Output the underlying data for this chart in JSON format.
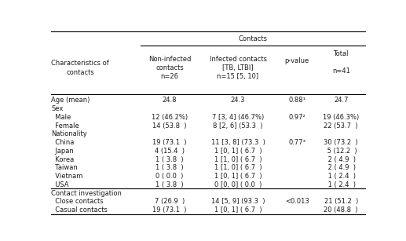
{
  "col_headers_row0": "Contacts",
  "col_headers": [
    "Characteristics of\ncontacts",
    "Non-infected\ncontacts\nn=26",
    "Infected contacts\n[TB, LTBI]\nn=15 [5, 10]",
    "p-value",
    "Total\n\nn=41"
  ],
  "rows": [
    [
      "Age (mean)",
      "24.8",
      "24.3",
      "0.88¹",
      "24.7"
    ],
    [
      "Sex",
      "",
      "",
      "",
      ""
    ],
    [
      "  Male",
      "12 (46.2%)",
      "7 [3, 4] (46.7%)",
      "0.97²",
      "19 (46.3%)"
    ],
    [
      "  Female",
      "14 (53.8  )",
      "8 [2, 6] (53.3  )",
      "",
      "22 (53.7  )"
    ],
    [
      "Nationality",
      "",
      "",
      "",
      ""
    ],
    [
      "  China",
      "19 (73.1  )",
      "11 [3, 8] (73.3  )",
      "0.77³",
      "30 (73.2  )"
    ],
    [
      "  Japan",
      "4 (15.4  )",
      "1 [0, 1] ( 6.7  )",
      "",
      " 5 (12.2  )"
    ],
    [
      "  Korea",
      "1 ( 3.8  )",
      "1 [1, 0] ( 6.7  )",
      "",
      " 2 ( 4.9  )"
    ],
    [
      "  Taiwan",
      "1 ( 3.8  )",
      "1 [1, 0] ( 6.7  )",
      "",
      " 2 ( 4.9  )"
    ],
    [
      "  Vietnam",
      "0 ( 0.0  )",
      "1 [0, 1] ( 6.7  )",
      "",
      " 1 ( 2.4  )"
    ],
    [
      "  USA",
      "1 ( 3.8  )",
      "0 [0, 0] ( 0.0  )",
      "",
      " 1 ( 2.4  )"
    ],
    [
      "Contact investigation",
      "",
      "",
      "",
      ""
    ],
    [
      "  Close contacts",
      "7 (26.9  )",
      "14 [5, 9] (93.3  )",
      "<0.013",
      "21 (51.2  )"
    ],
    [
      "  Casual contacts",
      "19 (73.1  )",
      "1 [0, 1] ( 6.7  )",
      "",
      "20 (48.8  )"
    ]
  ],
  "section_rows": [
    1,
    4,
    11
  ],
  "text_color": "#1a1a1a",
  "font_size": 6.0,
  "font_family": "DejaVu Sans"
}
